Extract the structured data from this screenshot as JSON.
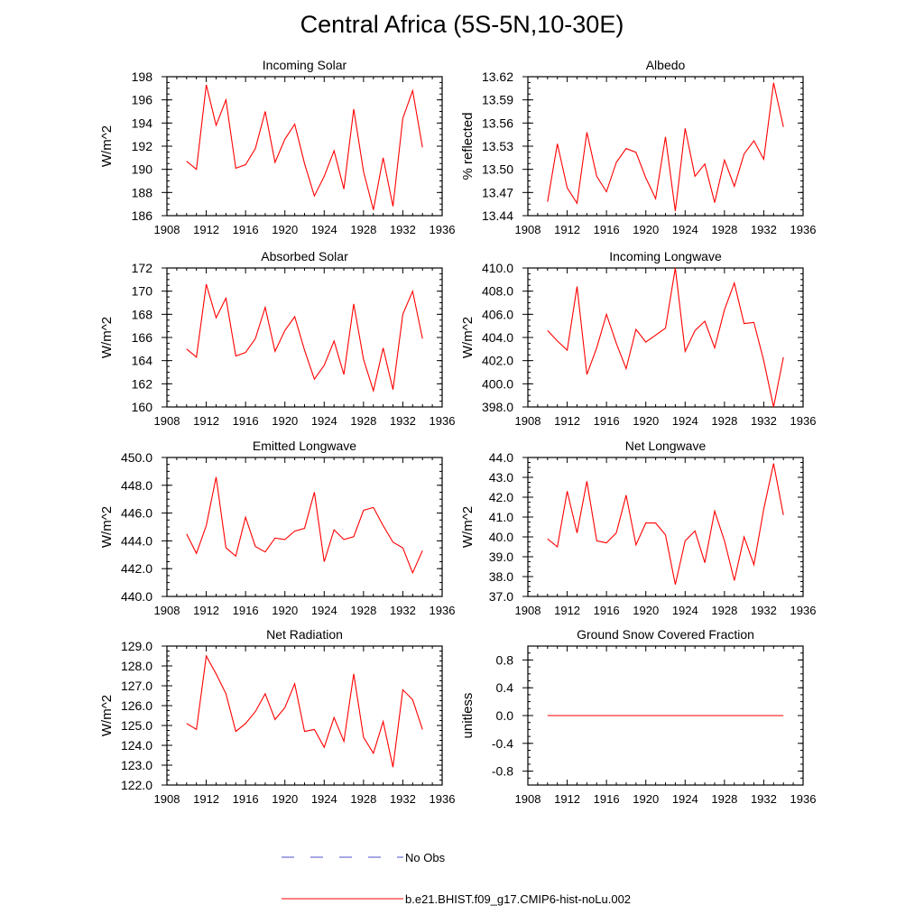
{
  "main_title": "Central Africa (5S-5N,10-30E)",
  "colors": {
    "model": "#ff0000",
    "obs": "#4d4dcc",
    "axis": "#000000"
  },
  "legend": [
    {
      "label": "No Obs",
      "style": "dashed",
      "color": "#4d4dcc"
    },
    {
      "label": "b.e21.BHIST.f09_g17.CMIP6-hist-noLu.002",
      "style": "solid",
      "color": "#ff0000"
    }
  ],
  "chart_data": [
    {
      "type": "line",
      "title": "Incoming Solar",
      "xlabel": "",
      "ylabel": "W/m^2",
      "xlim": [
        1908,
        1936
      ],
      "ylim": [
        186,
        198
      ],
      "xticks": [
        "1908",
        "1912",
        "1916",
        "1920",
        "1924",
        "1928",
        "1932",
        "1936"
      ],
      "yticks": [
        "186",
        "188",
        "190",
        "192",
        "194",
        "196",
        "198"
      ],
      "x": [
        1910,
        1911,
        1912,
        1913,
        1914,
        1915,
        1916,
        1917,
        1918,
        1919,
        1920,
        1921,
        1922,
        1923,
        1924,
        1925,
        1926,
        1927,
        1928,
        1929,
        1930,
        1931,
        1932,
        1933,
        1934
      ],
      "series": [
        {
          "values": [
            190.7,
            190.0,
            197.3,
            193.8,
            196.0,
            190.1,
            190.4,
            191.8,
            195.0,
            190.6,
            192.6,
            193.9,
            190.5,
            187.7,
            189.4,
            191.6,
            188.3,
            195.2,
            189.8,
            186.5,
            191.0,
            186.8,
            194.4,
            196.8,
            191.9
          ]
        }
      ]
    },
    {
      "type": "line",
      "title": "Albedo",
      "xlabel": "",
      "ylabel": "% reflected",
      "xlim": [
        1908,
        1936
      ],
      "ylim": [
        13.44,
        13.62
      ],
      "xticks": [
        "1908",
        "1912",
        "1916",
        "1920",
        "1924",
        "1928",
        "1932",
        "1936"
      ],
      "yticks": [
        "13.44",
        "13.47",
        "13.50",
        "13.53",
        "13.56",
        "13.59",
        "13.62"
      ],
      "x": [
        1910,
        1911,
        1912,
        1913,
        1914,
        1915,
        1916,
        1917,
        1918,
        1919,
        1920,
        1921,
        1922,
        1923,
        1924,
        1925,
        1926,
        1927,
        1928,
        1929,
        1930,
        1931,
        1932,
        1933,
        1934
      ],
      "series": [
        {
          "values": [
            13.458,
            13.533,
            13.476,
            13.456,
            13.548,
            13.491,
            13.471,
            13.509,
            13.527,
            13.522,
            13.489,
            13.462,
            13.542,
            13.446,
            13.553,
            13.491,
            13.507,
            13.457,
            13.512,
            13.478,
            13.52,
            13.537,
            13.513,
            13.612,
            13.555
          ]
        }
      ]
    },
    {
      "type": "line",
      "title": "Absorbed Solar",
      "xlabel": "",
      "ylabel": "W/m^2",
      "xlim": [
        1908,
        1936
      ],
      "ylim": [
        160,
        172
      ],
      "xticks": [
        "1908",
        "1912",
        "1916",
        "1920",
        "1924",
        "1928",
        "1932",
        "1936"
      ],
      "yticks": [
        "160",
        "162",
        "164",
        "166",
        "168",
        "170",
        "172"
      ],
      "x": [
        1910,
        1911,
        1912,
        1913,
        1914,
        1915,
        1916,
        1917,
        1918,
        1919,
        1920,
        1921,
        1922,
        1923,
        1924,
        1925,
        1926,
        1927,
        1928,
        1929,
        1930,
        1931,
        1932,
        1933,
        1934
      ],
      "series": [
        {
          "values": [
            165.0,
            164.3,
            170.6,
            167.7,
            169.4,
            164.4,
            164.7,
            165.9,
            168.6,
            164.8,
            166.6,
            167.8,
            164.9,
            162.4,
            163.6,
            165.7,
            162.8,
            168.9,
            164.1,
            161.4,
            165.1,
            161.5,
            168.0,
            170.0,
            165.9
          ]
        }
      ]
    },
    {
      "type": "line",
      "title": "Incoming Longwave",
      "xlabel": "",
      "ylabel": "W/m^2",
      "xlim": [
        1908,
        1936
      ],
      "ylim": [
        398.0,
        410.0
      ],
      "xticks": [
        "1908",
        "1912",
        "1916",
        "1920",
        "1924",
        "1928",
        "1932",
        "1936"
      ],
      "yticks": [
        "398.0",
        "400.0",
        "402.0",
        "404.0",
        "406.0",
        "408.0",
        "410.0"
      ],
      "x": [
        1910,
        1911,
        1912,
        1913,
        1914,
        1915,
        1916,
        1917,
        1918,
        1919,
        1920,
        1921,
        1922,
        1923,
        1924,
        1925,
        1926,
        1927,
        1928,
        1929,
        1930,
        1931,
        1932,
        1933,
        1934
      ],
      "series": [
        {
          "values": [
            404.6,
            403.7,
            402.9,
            408.4,
            400.8,
            403.1,
            406.0,
            403.5,
            401.3,
            404.7,
            403.6,
            404.2,
            404.8,
            410.0,
            402.8,
            404.6,
            405.4,
            403.1,
            406.4,
            408.7,
            405.2,
            405.3,
            402.0,
            398.0,
            402.3
          ]
        }
      ]
    },
    {
      "type": "line",
      "title": "Emitted Longwave",
      "xlabel": "",
      "ylabel": "W/m^2",
      "xlim": [
        1908,
        1936
      ],
      "ylim": [
        440.0,
        450.0
      ],
      "xticks": [
        "1908",
        "1912",
        "1916",
        "1920",
        "1924",
        "1928",
        "1932",
        "1936"
      ],
      "yticks": [
        "440.0",
        "442.0",
        "444.0",
        "446.0",
        "448.0",
        "450.0"
      ],
      "x": [
        1910,
        1911,
        1912,
        1913,
        1914,
        1915,
        1916,
        1917,
        1918,
        1919,
        1920,
        1921,
        1922,
        1923,
        1924,
        1925,
        1926,
        1927,
        1928,
        1929,
        1930,
        1931,
        1932,
        1933,
        1934
      ],
      "series": [
        {
          "values": [
            444.5,
            443.1,
            445.1,
            448.6,
            443.5,
            442.9,
            445.7,
            443.6,
            443.2,
            444.2,
            444.1,
            444.7,
            444.9,
            447.5,
            442.5,
            444.8,
            444.1,
            444.3,
            446.2,
            446.4,
            445.1,
            443.9,
            443.5,
            441.7,
            443.3
          ]
        }
      ]
    },
    {
      "type": "line",
      "title": "Net Longwave",
      "xlabel": "",
      "ylabel": "W/m^2",
      "xlim": [
        1908,
        1936
      ],
      "ylim": [
        37.0,
        44.0
      ],
      "xticks": [
        "1908",
        "1912",
        "1916",
        "1920",
        "1924",
        "1928",
        "1932",
        "1936"
      ],
      "yticks": [
        "37.0",
        "38.0",
        "39.0",
        "40.0",
        "41.0",
        "42.0",
        "43.0",
        "44.0"
      ],
      "x": [
        1910,
        1911,
        1912,
        1913,
        1914,
        1915,
        1916,
        1917,
        1918,
        1919,
        1920,
        1921,
        1922,
        1923,
        1924,
        1925,
        1926,
        1927,
        1928,
        1929,
        1930,
        1931,
        1932,
        1933,
        1934
      ],
      "series": [
        {
          "values": [
            39.9,
            39.5,
            42.3,
            40.2,
            42.8,
            39.8,
            39.7,
            40.2,
            42.1,
            39.6,
            40.7,
            40.7,
            40.1,
            37.6,
            39.8,
            40.3,
            38.7,
            41.3,
            39.8,
            37.8,
            40.0,
            38.6,
            41.4,
            43.7,
            41.1
          ]
        }
      ]
    },
    {
      "type": "line",
      "title": "Net Radiation",
      "xlabel": "",
      "ylabel": "W/m^2",
      "xlim": [
        1908,
        1936
      ],
      "ylim": [
        122.0,
        129.0
      ],
      "xticks": [
        "1908",
        "1912",
        "1916",
        "1920",
        "1924",
        "1928",
        "1932",
        "1936"
      ],
      "yticks": [
        "122.0",
        "123.0",
        "124.0",
        "125.0",
        "126.0",
        "127.0",
        "128.0",
        "129.0"
      ],
      "x": [
        1910,
        1911,
        1912,
        1913,
        1914,
        1915,
        1916,
        1917,
        1918,
        1919,
        1920,
        1921,
        1922,
        1923,
        1924,
        1925,
        1926,
        1927,
        1928,
        1929,
        1930,
        1931,
        1932,
        1933,
        1934
      ],
      "series": [
        {
          "values": [
            125.1,
            124.8,
            128.5,
            127.6,
            126.6,
            124.7,
            125.1,
            125.7,
            126.6,
            125.3,
            125.9,
            127.1,
            124.7,
            124.8,
            123.9,
            125.4,
            124.2,
            127.6,
            124.4,
            123.6,
            125.2,
            122.9,
            126.8,
            126.3,
            124.8
          ]
        }
      ]
    },
    {
      "type": "line",
      "title": "Ground Snow Covered Fraction",
      "xlabel": "",
      "ylabel": "unitless",
      "xlim": [
        1908,
        1936
      ],
      "ylim": [
        -1.0,
        1.0
      ],
      "xticks": [
        "1908",
        "1912",
        "1916",
        "1920",
        "1924",
        "1928",
        "1932",
        "1936"
      ],
      "yticks": [
        "-0.8",
        "-0.4",
        "0.0",
        "0.4",
        "0.8"
      ],
      "x": [
        1910,
        1911,
        1912,
        1913,
        1914,
        1915,
        1916,
        1917,
        1918,
        1919,
        1920,
        1921,
        1922,
        1923,
        1924,
        1925,
        1926,
        1927,
        1928,
        1929,
        1930,
        1931,
        1932,
        1933,
        1934
      ],
      "series": [
        {
          "values": [
            0,
            0,
            0,
            0,
            0,
            0,
            0,
            0,
            0,
            0,
            0,
            0,
            0,
            0,
            0,
            0,
            0,
            0,
            0,
            0,
            0,
            0,
            0,
            0,
            0
          ]
        }
      ]
    }
  ]
}
